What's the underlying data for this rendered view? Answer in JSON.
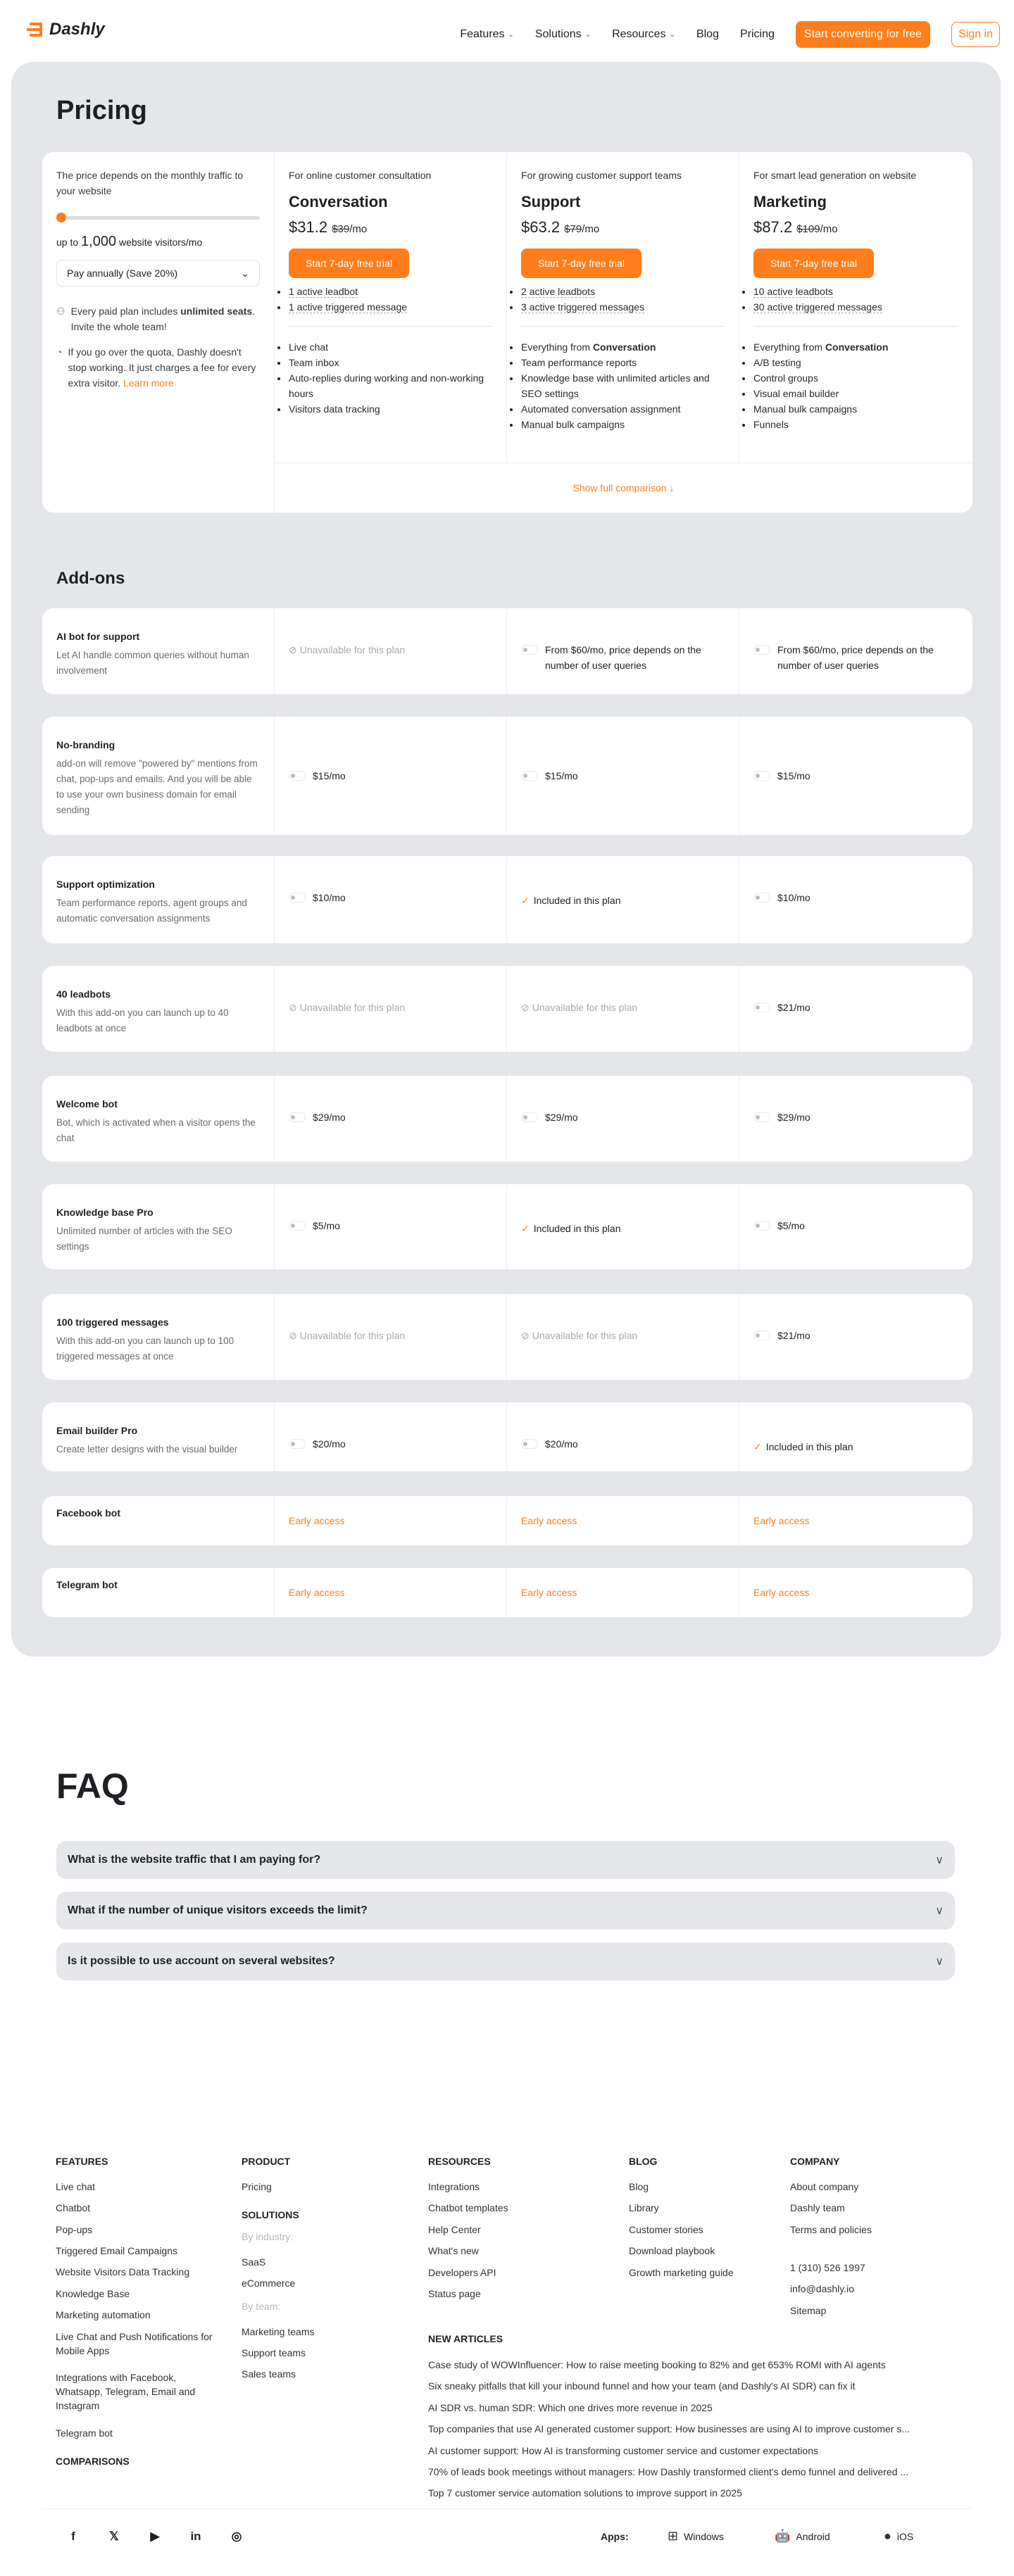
{
  "colors": {
    "accent": "#ff7e1b",
    "panel": "#e5e6ea"
  },
  "header": {
    "logo": "Dashly",
    "nav": [
      {
        "label": "Features",
        "dropdown": true
      },
      {
        "label": "Solutions",
        "dropdown": true
      },
      {
        "label": "Resources",
        "dropdown": true
      },
      {
        "label": "Blog"
      },
      {
        "label": "Pricing"
      }
    ],
    "cta": "Start converting for free",
    "signin": "Sign in"
  },
  "pricing": {
    "title": "Pricing",
    "traffic_note": "The price depends on the monthly traffic to your website",
    "slider_value": 1000,
    "visitors_prefix": "up to",
    "visitors_value": "1,000",
    "visitors_suffix": "website visitors/mo",
    "billing": "Pay annually (Save 20%)",
    "seats_pre": "Every paid plan includes ",
    "seats_bold": "unlimited seats",
    "seats_post": ". Invite the whole team!",
    "quota": "If you go over the quota, Dashly doesn't stop working. It just charges a fee for every extra visitor. ",
    "learn_more": "Learn more",
    "plans": [
      {
        "subtitle": "For online customer consultation",
        "name": "Conversation",
        "price": "$31.2",
        "old": "$39",
        "per": "/mo",
        "cta": "Start 7-day free trial",
        "limits": [
          "1 active leadbot",
          "1 active triggered message"
        ],
        "features": [
          "Live chat",
          "Team inbox",
          "Auto-replies during working and non-working hours",
          "Visitors data tracking"
        ]
      },
      {
        "subtitle": "For growing customer support teams",
        "name": "Support",
        "price": "$63.2",
        "old": "$79",
        "per": "/mo",
        "cta": "Start 7-day free trial",
        "limits": [
          "2 active leadbots",
          "3 active triggered messages"
        ],
        "features_lead": "Everything from ",
        "features_lead_bold": "Conversation",
        "features": [
          "Team performance reports",
          "Knowledge base with unlimited articles and SEO settings",
          "Automated conversation assignment",
          "Manual bulk campaigns"
        ]
      },
      {
        "subtitle": "For smart lead generation on website",
        "name": "Marketing",
        "price": "$87.2",
        "old": "$109",
        "per": "/mo",
        "cta": "Start 7-day free trial",
        "limits": [
          "10 active leadbots",
          "30 active triggered messages"
        ],
        "features_lead": "Everything from ",
        "features_lead_bold": "Conversation",
        "features": [
          "A/B testing",
          "Control groups",
          "Visual email builder",
          "Manual bulk campaigns",
          "Funnels"
        ]
      }
    ],
    "compare": "Show full comparison ↓"
  },
  "addons": {
    "title": "Add-ons",
    "unavailable": "Unavailable for this plan",
    "included": "Included in this plan",
    "rows": [
      {
        "name": "AI bot for support",
        "desc": "Let AI handle common queries without human involvement",
        "cells": [
          {
            "t": "unavailable"
          },
          {
            "t": "price",
            "v": "From $60/mo, price depends on the number of user queries"
          },
          {
            "t": "price",
            "v": "From $60/mo, price depends on the number of user queries"
          }
        ]
      },
      {
        "name": "No-branding",
        "desc": "add-on will remove \"powered by\" mentions from chat, pop-ups and emails. And you will be able to use your own business domain for email sending",
        "cells": [
          {
            "t": "price",
            "v": "$15/mo"
          },
          {
            "t": "price",
            "v": "$15/mo"
          },
          {
            "t": "price",
            "v": "$15/mo"
          }
        ]
      },
      {
        "name": "Support optimization",
        "desc": "Team performance reports, agent groups and automatic conversation assignments",
        "cells": [
          {
            "t": "price",
            "v": "$10/mo"
          },
          {
            "t": "included"
          },
          {
            "t": "price",
            "v": "$10/mo"
          }
        ]
      },
      {
        "name": "40 leadbots",
        "desc": "With this add-on you can launch up to 40 leadbots at once",
        "cells": [
          {
            "t": "unavailable"
          },
          {
            "t": "unavailable"
          },
          {
            "t": "price",
            "v": "$21/mo"
          }
        ]
      },
      {
        "name": "Welcome bot",
        "desc": "Bot, which is activated when a visitor opens the chat",
        "cells": [
          {
            "t": "price",
            "v": "$29/mo"
          },
          {
            "t": "price",
            "v": "$29/mo"
          },
          {
            "t": "price",
            "v": "$29/mo"
          }
        ]
      },
      {
        "name": "Knowledge base Pro",
        "desc": "Unlimited number of articles with the SEO settings",
        "cells": [
          {
            "t": "price",
            "v": "$5/mo"
          },
          {
            "t": "included"
          },
          {
            "t": "price",
            "v": "$5/mo"
          }
        ]
      },
      {
        "name": "100 triggered messages",
        "desc": "With this add-on you can launch up to 100 triggered messages at once",
        "cells": [
          {
            "t": "unavailable"
          },
          {
            "t": "unavailable"
          },
          {
            "t": "price",
            "v": "$21/mo"
          }
        ]
      },
      {
        "name": "Email builder Pro",
        "desc": "Create letter designs with the visual builder",
        "cells": [
          {
            "t": "price",
            "v": "$20/mo"
          },
          {
            "t": "price",
            "v": "$20/mo"
          },
          {
            "t": "included"
          }
        ]
      },
      {
        "name": "Facebook bot",
        "desc": "",
        "cells": [
          {
            "t": "early",
            "v": "Early access"
          },
          {
            "t": "early",
            "v": "Early access"
          },
          {
            "t": "early",
            "v": "Early access"
          }
        ]
      },
      {
        "name": "Telegram bot",
        "desc": "",
        "cells": [
          {
            "t": "early",
            "v": "Early access"
          },
          {
            "t": "early",
            "v": "Early access"
          },
          {
            "t": "early",
            "v": "Early access"
          }
        ]
      }
    ]
  },
  "faq": {
    "title": "FAQ",
    "items": [
      "What is the website traffic that I am paying for?",
      "What if the number of unique visitors exceeds the limit?",
      "Is it possible to use account on several websites?"
    ]
  },
  "footer": {
    "features": {
      "heading": "FEATURES",
      "items": [
        "Live chat",
        "Chatbot",
        "Pop-ups",
        "Triggered Email Campaigns",
        "Website Visitors Data Tracking",
        "Knowledge Base",
        "Marketing automation",
        "Live Chat and Push Notifications for Mobile Apps",
        "Integrations with Facebook, Whatsapp, Telegram, Email and Instagram",
        "Telegram bot"
      ]
    },
    "comparisons": "COMPARISONS",
    "product": {
      "heading": "PRODUCT",
      "items": [
        "Pricing"
      ]
    },
    "solutions": {
      "heading": "SOLUTIONS",
      "by_industry": "By industry:",
      "industry": [
        "SaaS",
        "eCommerce"
      ],
      "by_team": "By team:",
      "team": [
        "Marketing teams",
        "Support teams",
        "Sales teams"
      ]
    },
    "resources": {
      "heading": "RESOURCES",
      "items": [
        "Integrations",
        "Chatbot templates",
        "Help Center",
        "What's new",
        "Developers API",
        "Status page"
      ]
    },
    "blog": {
      "heading": "BLOG",
      "items": [
        "Blog",
        "Library",
        "Customer stories",
        "Download playbook",
        "Growth marketing guide"
      ]
    },
    "company": {
      "heading": "COMPANY",
      "items": [
        "About company",
        "Dashly team",
        "Terms and policies"
      ],
      "phone": "1 (310) 526 1997",
      "email": "info@dashly.io",
      "sitemap": "Sitemap"
    },
    "articles": {
      "heading": "NEW ARTICLES",
      "items": [
        "Case study of WOWInfluencer: How to raise meeting booking to 82% and get 653% ROMI with AI agents",
        "Six sneaky pitfalls that kill your inbound funnel and how your team (and Dashly's AI SDR) can fix it",
        "AI SDR vs. human SDR: Which one drives more revenue in 2025",
        "Top companies that use AI generated customer support: How businesses are using AI to improve customer s...",
        "AI customer support: How AI is transforming customer service and customer expectations",
        "70% of leads book meetings without managers: How Dashly transformed client's demo funnel and delivered ...",
        "Top 7 customer service automation solutions to improve support in 2025"
      ]
    },
    "social": [
      "facebook-icon",
      "x-icon",
      "youtube-icon",
      "linkedin-icon",
      "instagram-icon"
    ],
    "apps_label": "Apps:",
    "apps": [
      {
        "icon": "windows-icon",
        "label": "Windows"
      },
      {
        "icon": "android-icon",
        "label": "Android"
      },
      {
        "icon": "apple-icon",
        "label": "iOS"
      }
    ]
  }
}
